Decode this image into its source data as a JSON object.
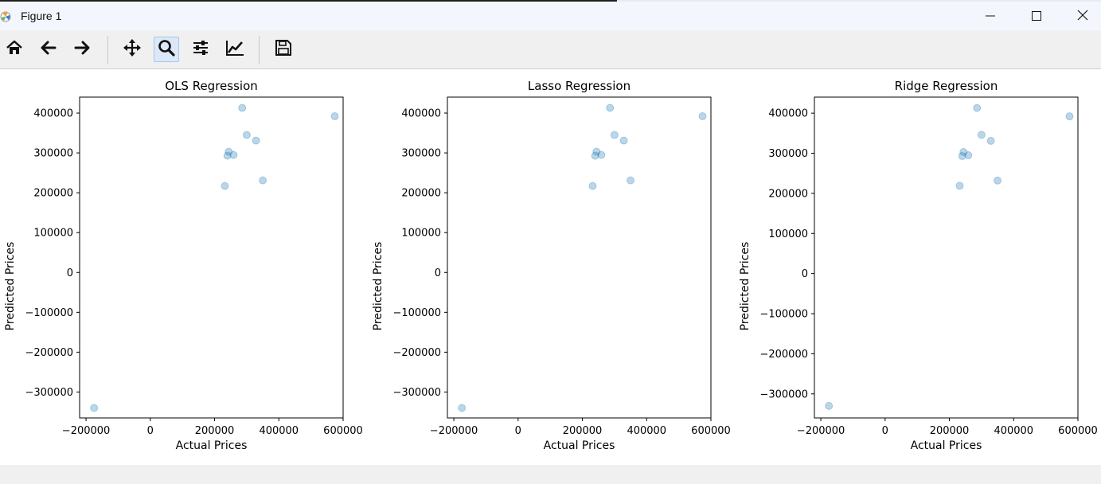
{
  "window": {
    "title": "Figure 1",
    "icon": "matplotlib-icon",
    "controls": [
      "minimize-icon",
      "maximize-icon",
      "close-icon"
    ]
  },
  "toolbar": {
    "buttons": [
      {
        "name": "home",
        "icon": "home-icon"
      },
      {
        "name": "back",
        "icon": "arrow-left-icon"
      },
      {
        "name": "forward",
        "icon": "arrow-right-icon"
      },
      {
        "name": "pan",
        "icon": "move-icon"
      },
      {
        "name": "zoom",
        "icon": "magnifier-icon",
        "active": true
      },
      {
        "name": "subplots",
        "icon": "sliders-icon"
      },
      {
        "name": "edit-axes",
        "icon": "line-chart-icon"
      },
      {
        "name": "save",
        "icon": "floppy-disk-icon"
      }
    ]
  },
  "colors": {
    "marker": "#1f77b4",
    "marker_alpha": 0.3
  },
  "chart_data": [
    {
      "type": "scatter",
      "title": "OLS Regression",
      "xlabel": "Actual Prices",
      "ylabel": "Predicted Prices",
      "xlim": [
        -220000,
        600000
      ],
      "ylim": [
        -365000,
        440000
      ],
      "xticks": [
        -200000,
        0,
        200000,
        400000,
        600000
      ],
      "xtick_labels": [
        "−200000",
        "0",
        "200000",
        "400000",
        "600000"
      ],
      "yticks": [
        -300000,
        -200000,
        -100000,
        0,
        100000,
        200000,
        300000,
        400000
      ],
      "ytick_labels": [
        "−300000",
        "−200000",
        "−100000",
        "0",
        "100000",
        "200000",
        "300000",
        "400000"
      ],
      "points": [
        {
          "x": -175000,
          "y": -340000
        },
        {
          "x": 232000,
          "y": 217000
        },
        {
          "x": 240000,
          "y": 293000
        },
        {
          "x": 244000,
          "y": 303000
        },
        {
          "x": 259000,
          "y": 295000
        },
        {
          "x": 286000,
          "y": 413000
        },
        {
          "x": 300000,
          "y": 345000
        },
        {
          "x": 329000,
          "y": 331000
        },
        {
          "x": 350000,
          "y": 231000
        },
        {
          "x": 574000,
          "y": 392000
        }
      ]
    },
    {
      "type": "scatter",
      "title": "Lasso Regression",
      "xlabel": "Actual Prices",
      "ylabel": "Predicted Prices",
      "xlim": [
        -220000,
        600000
      ],
      "ylim": [
        -365000,
        440000
      ],
      "xticks": [
        -200000,
        0,
        200000,
        400000,
        600000
      ],
      "xtick_labels": [
        "−200000",
        "0",
        "200000",
        "400000",
        "600000"
      ],
      "yticks": [
        -300000,
        -200000,
        -100000,
        0,
        100000,
        200000,
        300000,
        400000
      ],
      "ytick_labels": [
        "−300000",
        "−200000",
        "−100000",
        "0",
        "100000",
        "200000",
        "300000",
        "400000"
      ],
      "points": [
        {
          "x": -175000,
          "y": -340000
        },
        {
          "x": 232000,
          "y": 217000
        },
        {
          "x": 240000,
          "y": 293000
        },
        {
          "x": 244000,
          "y": 303000
        },
        {
          "x": 259000,
          "y": 295000
        },
        {
          "x": 286000,
          "y": 413000
        },
        {
          "x": 300000,
          "y": 345000
        },
        {
          "x": 329000,
          "y": 331000
        },
        {
          "x": 350000,
          "y": 231000
        },
        {
          "x": 574000,
          "y": 392000
        }
      ]
    },
    {
      "type": "scatter",
      "title": "Ridge Regression",
      "xlabel": "Actual Prices",
      "ylabel": "Predicted Prices",
      "xlim": [
        -220000,
        600000
      ],
      "ylim": [
        -360000,
        440000
      ],
      "xticks": [
        -200000,
        0,
        200000,
        400000,
        600000
      ],
      "xtick_labels": [
        "−200000",
        "0",
        "200000",
        "400000",
        "600000"
      ],
      "yticks": [
        -300000,
        -200000,
        -100000,
        0,
        100000,
        200000,
        300000,
        400000
      ],
      "ytick_labels": [
        "−300000",
        "−200000",
        "−100000",
        "0",
        "100000",
        "200000",
        "300000",
        "400000"
      ],
      "points": [
        {
          "x": -175000,
          "y": -330000
        },
        {
          "x": 232000,
          "y": 219000
        },
        {
          "x": 240000,
          "y": 293000
        },
        {
          "x": 244000,
          "y": 303000
        },
        {
          "x": 259000,
          "y": 295000
        },
        {
          "x": 286000,
          "y": 413000
        },
        {
          "x": 300000,
          "y": 346000
        },
        {
          "x": 329000,
          "y": 331000
        },
        {
          "x": 350000,
          "y": 232000
        },
        {
          "x": 574000,
          "y": 392000
        }
      ]
    }
  ]
}
